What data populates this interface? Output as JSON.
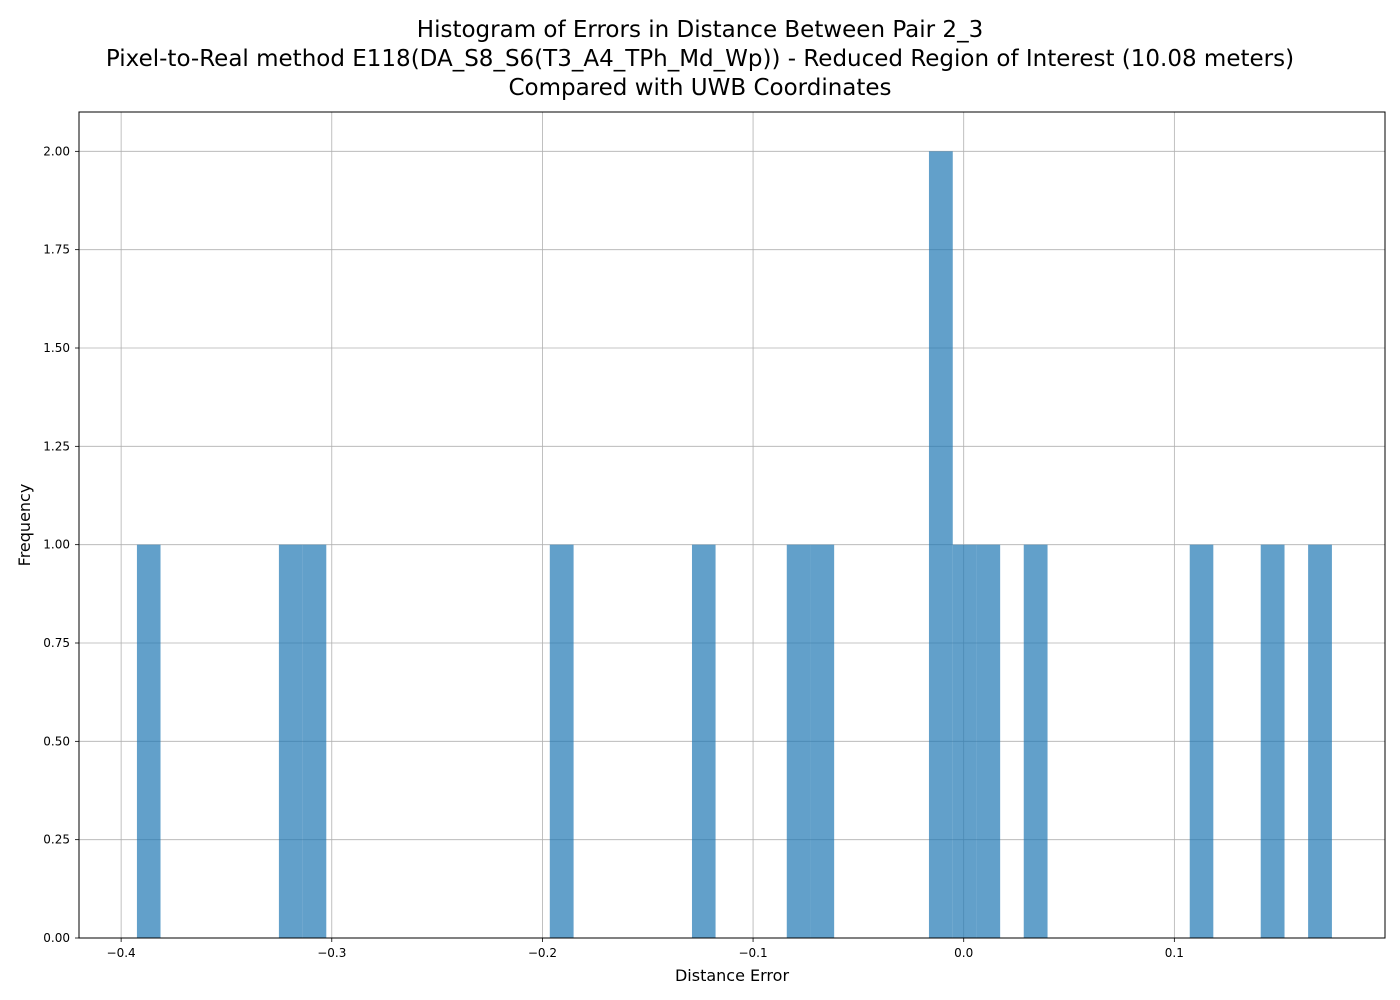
{
  "chart_data": {
    "type": "bar",
    "title_lines": [
      "Histogram of Errors in Distance Between Pair 2_3",
      "Pixel-to-Real method E118(DA_S8_S6(T3_A4_TPh_Md_Wp)) - Reduced Region of Interest (10.08 meters)",
      "Compared with UWB Coordinates"
    ],
    "xlabel": "Distance Error",
    "ylabel": "Frequency",
    "xlim": [
      -0.42,
      0.2
    ],
    "ylim": [
      0,
      2.1
    ],
    "x_ticks": [
      -0.4,
      -0.3,
      -0.2,
      -0.1,
      0.0,
      0.1
    ],
    "x_tick_labels": [
      "−0.4",
      "−0.3",
      "−0.2",
      "−0.1",
      "0.0",
      "0.1"
    ],
    "y_ticks": [
      0,
      0.25,
      0.5,
      0.75,
      1.0,
      1.25,
      1.5,
      1.75,
      2.0
    ],
    "y_tick_labels": [
      "0.00",
      "0.25",
      "0.50",
      "0.75",
      "1.00",
      "1.25",
      "1.50",
      "1.75",
      "2.00"
    ],
    "grid": true,
    "bar_color": "#1f77b4",
    "bar_alpha": 0.7,
    "bins": [
      {
        "x0": -0.3925,
        "x1": -0.3813,
        "count": 1
      },
      {
        "x0": -0.3251,
        "x1": -0.3138,
        "count": 1
      },
      {
        "x0": -0.3138,
        "x1": -0.3026,
        "count": 1
      },
      {
        "x0": -0.1965,
        "x1": -0.1852,
        "count": 1
      },
      {
        "x0": -0.129,
        "x1": -0.1178,
        "count": 1
      },
      {
        "x0": -0.084,
        "x1": -0.0727,
        "count": 1
      },
      {
        "x0": -0.0727,
        "x1": -0.0615,
        "count": 1
      },
      {
        "x0": -0.0165,
        "x1": -0.0052,
        "count": 2
      },
      {
        "x0": -0.0052,
        "x1": 0.006,
        "count": 1
      },
      {
        "x0": 0.006,
        "x1": 0.0173,
        "count": 1
      },
      {
        "x0": 0.0285,
        "x1": 0.0398,
        "count": 1
      },
      {
        "x0": 0.1073,
        "x1": 0.1185,
        "count": 1
      },
      {
        "x0": 0.141,
        "x1": 0.1523,
        "count": 1
      },
      {
        "x0": 0.1635,
        "x1": 0.1748,
        "count": 1
      }
    ]
  }
}
